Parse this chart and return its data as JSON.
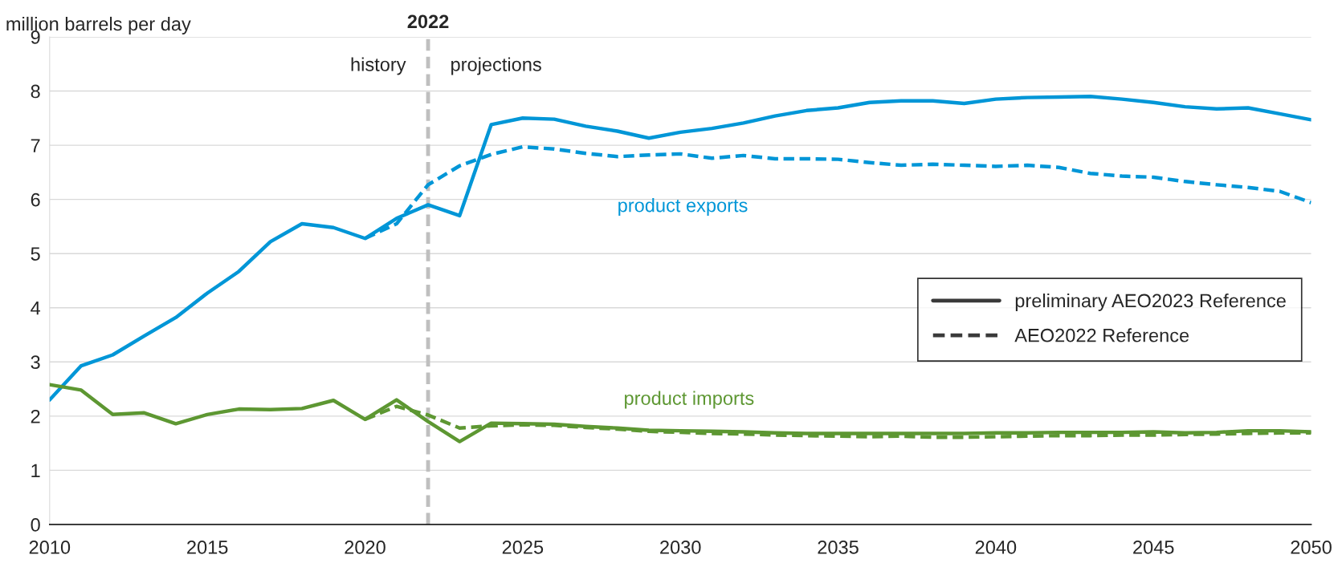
{
  "chart_data": {
    "type": "line",
    "ylabel": "million barrels per day",
    "x": [
      2010,
      2011,
      2012,
      2013,
      2014,
      2015,
      2016,
      2017,
      2018,
      2019,
      2020,
      2021,
      2022,
      2023,
      2024,
      2025,
      2026,
      2027,
      2028,
      2029,
      2030,
      2031,
      2032,
      2033,
      2034,
      2035,
      2036,
      2037,
      2038,
      2039,
      2040,
      2041,
      2042,
      2043,
      2044,
      2045,
      2046,
      2047,
      2048,
      2049,
      2050
    ],
    "series": [
      {
        "color": "#0096d7",
        "line_style": "dashed",
        "values": [
          null,
          null,
          null,
          null,
          null,
          null,
          null,
          null,
          null,
          null,
          5.28,
          5.55,
          6.27,
          6.62,
          6.83,
          6.97,
          6.93,
          6.85,
          6.79,
          6.82,
          6.84,
          6.76,
          6.81,
          6.75,
          6.75,
          6.74,
          6.68,
          6.63,
          6.65,
          6.63,
          6.61,
          6.63,
          6.59,
          6.48,
          6.43,
          6.41,
          6.33,
          6.27,
          6.22,
          6.15,
          5.94
        ]
      },
      {
        "color": "#5d9732",
        "line_style": "dashed",
        "values": [
          null,
          null,
          null,
          null,
          null,
          null,
          null,
          null,
          null,
          null,
          1.94,
          2.18,
          2.02,
          1.78,
          1.82,
          1.84,
          1.83,
          1.79,
          1.76,
          1.72,
          1.7,
          1.68,
          1.67,
          1.65,
          1.64,
          1.63,
          1.62,
          1.63,
          1.61,
          1.61,
          1.62,
          1.63,
          1.64,
          1.64,
          1.65,
          1.65,
          1.66,
          1.67,
          1.68,
          1.69,
          1.69
        ]
      },
      {
        "name": "product exports",
        "color": "#0096d7",
        "line_style": "solid",
        "values": [
          2.3,
          2.93,
          3.13,
          3.48,
          3.82,
          4.27,
          4.67,
          5.22,
          5.55,
          5.48,
          5.28,
          5.65,
          5.9,
          5.7,
          7.38,
          7.5,
          7.48,
          7.35,
          7.26,
          7.13,
          7.24,
          7.31,
          7.41,
          7.54,
          7.64,
          7.69,
          7.79,
          7.82,
          7.82,
          7.77,
          7.85,
          7.88,
          7.89,
          7.9,
          7.85,
          7.79,
          7.71,
          7.67,
          7.69,
          7.58,
          7.47
        ]
      },
      {
        "name": "product imports",
        "color": "#5d9732",
        "line_style": "solid",
        "values": [
          2.58,
          2.48,
          2.03,
          2.06,
          1.86,
          2.03,
          2.13,
          2.12,
          2.14,
          2.29,
          1.94,
          2.3,
          1.9,
          1.53,
          1.87,
          1.86,
          1.85,
          1.81,
          1.78,
          1.74,
          1.73,
          1.72,
          1.71,
          1.69,
          1.68,
          1.68,
          1.68,
          1.68,
          1.68,
          1.68,
          1.69,
          1.69,
          1.7,
          1.7,
          1.7,
          1.71,
          1.69,
          1.7,
          1.73,
          1.73,
          1.71
        ]
      }
    ],
    "xlim": [
      2010,
      2050
    ],
    "xticks": [
      2010,
      2015,
      2020,
      2025,
      2030,
      2035,
      2040,
      2045,
      2050
    ],
    "ylim": [
      0,
      9
    ],
    "yticks": [
      0,
      1,
      2,
      3,
      4,
      5,
      6,
      7,
      8,
      9
    ],
    "grid": "y",
    "marker": "none",
    "ref_lines": [
      {
        "axis": "x",
        "value": 2022,
        "label": "2022",
        "color": "#bfbfbf",
        "line_style": "dashed"
      }
    ],
    "annotations": [
      "history",
      "projections",
      "preliminary AEO2023 Reference",
      "AEO2022 Reference"
    ]
  }
}
